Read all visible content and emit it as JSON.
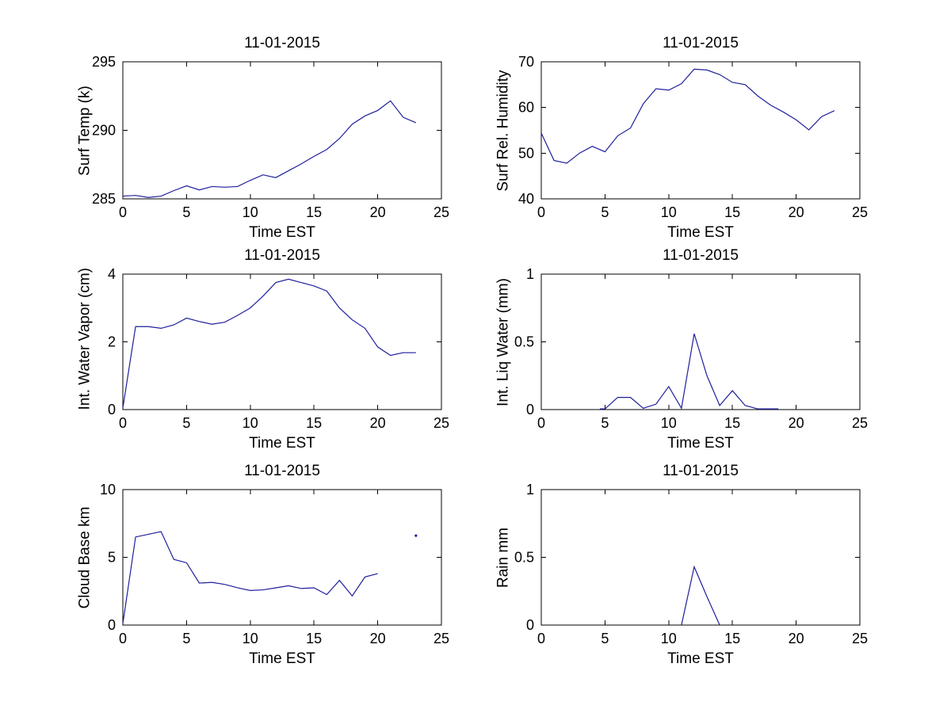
{
  "figure": {
    "background": "#ffffff",
    "axis_color": "#000000",
    "line_color": "#1f1f9c",
    "date": "11-01-2015"
  },
  "chart_data": [
    {
      "id": "surf-temp",
      "type": "line",
      "title": "11-01-2015",
      "xlabel": "Time EST",
      "ylabel": "Surf Temp (k)",
      "xlim": [
        0,
        25
      ],
      "ylim": [
        285,
        295
      ],
      "xticks": [
        0,
        5,
        10,
        15,
        20,
        25
      ],
      "xtick_labels": [
        "0",
        "5",
        "10",
        "15",
        "20",
        "25"
      ],
      "yticks": [
        285,
        290,
        295
      ],
      "ytick_labels": [
        "285",
        "290",
        "295"
      ],
      "grid": false,
      "legend": null,
      "x": [
        0,
        1,
        2,
        3,
        4,
        5,
        6,
        7,
        8,
        9,
        10,
        11,
        12,
        13,
        14,
        15,
        16,
        17,
        18,
        19,
        20,
        21,
        22,
        23
      ],
      "y": [
        285.2,
        285.25,
        285.1,
        285.2,
        285.6,
        285.95,
        285.65,
        285.9,
        285.85,
        285.9,
        286.35,
        286.75,
        286.55,
        287.05,
        287.55,
        288.1,
        288.6,
        289.4,
        290.45,
        291.05,
        291.45,
        292.15,
        290.95,
        290.55
      ],
      "points": []
    },
    {
      "id": "surf-rel-humidity",
      "type": "line",
      "title": "11-01-2015",
      "xlabel": "Time EST",
      "ylabel": "Surf Rel. Humidity",
      "xlim": [
        0,
        25
      ],
      "ylim": [
        40,
        70
      ],
      "xticks": [
        0,
        5,
        10,
        15,
        20,
        25
      ],
      "xtick_labels": [
        "0",
        "5",
        "10",
        "15",
        "20",
        "25"
      ],
      "yticks": [
        40,
        50,
        60,
        70
      ],
      "ytick_labels": [
        "40",
        "50",
        "60",
        "70"
      ],
      "grid": false,
      "legend": null,
      "x": [
        0,
        1,
        2,
        3,
        4,
        5,
        6,
        7,
        8,
        9,
        10,
        11,
        12,
        13,
        14,
        15,
        16,
        17,
        18,
        19,
        20,
        21,
        22,
        23
      ],
      "y": [
        54.4,
        48.4,
        47.8,
        50,
        51.5,
        50.3,
        53.8,
        55.5,
        60.8,
        64.1,
        63.8,
        65.2,
        68.4,
        68.2,
        67.2,
        65.5,
        65,
        62.5,
        60.5,
        59,
        57.3,
        55.1,
        58,
        59.3
      ],
      "points": []
    },
    {
      "id": "int-water-vapor",
      "type": "line",
      "title": "11-01-2015",
      "xlabel": "Time EST",
      "ylabel": "Int. Water Vapor (cm)",
      "xlim": [
        0,
        25
      ],
      "ylim": [
        0,
        4
      ],
      "xticks": [
        0,
        5,
        10,
        15,
        20,
        25
      ],
      "xtick_labels": [
        "0",
        "5",
        "10",
        "15",
        "20",
        "25"
      ],
      "yticks": [
        0,
        2,
        4
      ],
      "ytick_labels": [
        "0",
        "2",
        "4"
      ],
      "grid": false,
      "legend": null,
      "x": [
        0,
        1,
        2,
        3,
        4,
        5,
        6,
        7,
        8,
        9,
        10,
        11,
        12,
        13,
        14,
        15,
        16,
        17,
        18,
        19,
        20,
        21,
        22,
        23
      ],
      "y": [
        0.05,
        2.45,
        2.45,
        2.4,
        2.5,
        2.7,
        2.6,
        2.52,
        2.58,
        2.78,
        3.0,
        3.35,
        3.75,
        3.85,
        3.75,
        3.65,
        3.5,
        3.0,
        2.65,
        2.4,
        1.85,
        1.6,
        1.68,
        1.68
      ],
      "points": []
    },
    {
      "id": "int-liq-water",
      "type": "line",
      "title": "11-01-2015",
      "xlabel": "Time EST",
      "ylabel": "Int. Liq Water (mm)",
      "xlim": [
        0,
        25
      ],
      "ylim": [
        0,
        1
      ],
      "xticks": [
        0,
        5,
        10,
        15,
        20,
        25
      ],
      "xtick_labels": [
        "0",
        "5",
        "10",
        "15",
        "20",
        "25"
      ],
      "yticks": [
        0,
        0.5,
        1
      ],
      "ytick_labels": [
        "0",
        "0.5",
        "1"
      ],
      "grid": false,
      "legend": null,
      "x": [
        4.6,
        5,
        6,
        7,
        8,
        9,
        10,
        11,
        12,
        13,
        14,
        15,
        16,
        17,
        18,
        18.6
      ],
      "y": [
        0.005,
        0.005,
        0.09,
        0.09,
        0.01,
        0.04,
        0.17,
        0.01,
        0.56,
        0.25,
        0.03,
        0.14,
        0.03,
        0.005,
        0.005,
        0.005
      ],
      "points": []
    },
    {
      "id": "cloud-base",
      "type": "line",
      "title": "11-01-2015",
      "xlabel": "Time EST",
      "ylabel": "Cloud Base km",
      "xlim": [
        0,
        25
      ],
      "ylim": [
        0,
        10
      ],
      "xticks": [
        0,
        5,
        10,
        15,
        20,
        25
      ],
      "xtick_labels": [
        "0",
        "5",
        "10",
        "15",
        "20",
        "25"
      ],
      "yticks": [
        0,
        5,
        10
      ],
      "ytick_labels": [
        "0",
        "5",
        "10"
      ],
      "grid": false,
      "legend": null,
      "x": [
        0,
        1,
        2,
        3,
        4,
        5,
        6,
        7,
        8,
        9,
        10,
        11,
        12,
        13,
        14,
        15,
        16,
        17,
        18,
        19,
        20
      ],
      "y": [
        0.1,
        6.5,
        6.7,
        6.9,
        4.85,
        4.6,
        3.1,
        3.15,
        3.0,
        2.75,
        2.55,
        2.6,
        2.75,
        2.9,
        2.7,
        2.75,
        2.25,
        3.3,
        2.15,
        3.55,
        3.8
      ],
      "points": [
        {
          "x": 23,
          "y": 6.6
        }
      ]
    },
    {
      "id": "rain",
      "type": "line",
      "title": "11-01-2015",
      "xlabel": "Time EST",
      "ylabel": "Rain mm",
      "xlim": [
        0,
        25
      ],
      "ylim": [
        0,
        1
      ],
      "xticks": [
        0,
        5,
        10,
        15,
        20,
        25
      ],
      "xtick_labels": [
        "0",
        "5",
        "10",
        "15",
        "20",
        "25"
      ],
      "yticks": [
        0,
        0.5,
        1
      ],
      "ytick_labels": [
        "0",
        "0.5",
        "1"
      ],
      "grid": false,
      "legend": null,
      "x": [
        11,
        12,
        13,
        14
      ],
      "y": [
        0,
        0.43,
        0.21,
        0
      ],
      "points": []
    }
  ]
}
